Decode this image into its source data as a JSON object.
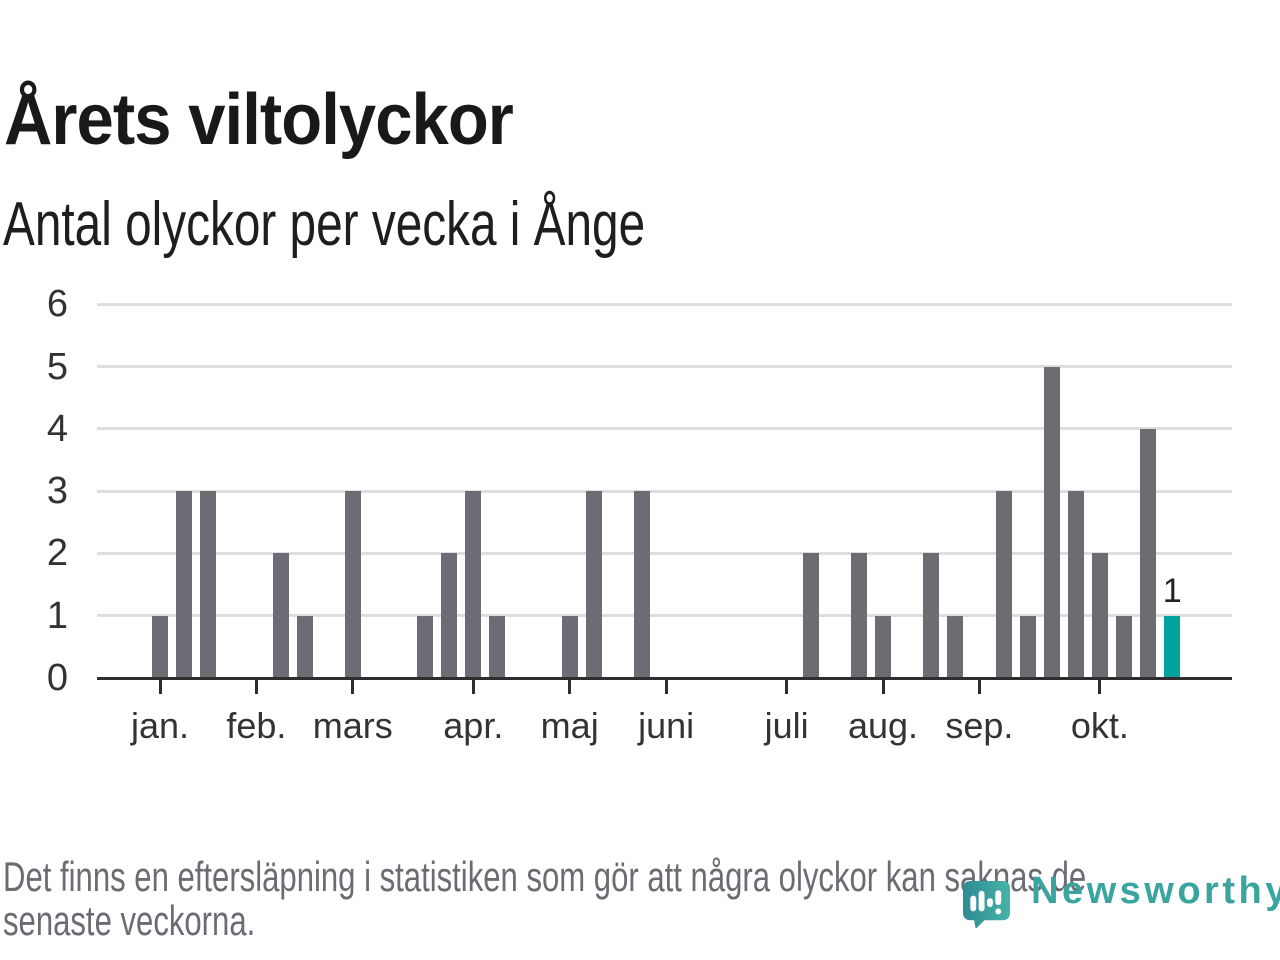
{
  "header": {
    "title": "Årets viltolyckor",
    "subtitle": "Antal olyckor per vecka i Ånge"
  },
  "chart_data": {
    "type": "bar",
    "title": "Årets viltolyckor",
    "subtitle": "Antal olyckor per vecka i Ånge",
    "x_unit": "vecka",
    "ylim": [
      0,
      6
    ],
    "yticks": [
      0,
      1,
      2,
      3,
      4,
      5,
      6
    ],
    "grid": "horizontal",
    "weekly_values": [
      1,
      3,
      3,
      0,
      0,
      2,
      1,
      0,
      3,
      0,
      0,
      1,
      2,
      3,
      1,
      0,
      0,
      1,
      3,
      0,
      3,
      0,
      0,
      0,
      0,
      0,
      0,
      2,
      0,
      2,
      1,
      0,
      2,
      1,
      0,
      3,
      1,
      5,
      3,
      2,
      1,
      4,
      1
    ],
    "month_ticks": [
      {
        "label": "jan.",
        "week": 0
      },
      {
        "label": "feb.",
        "week": 4
      },
      {
        "label": "mars",
        "week": 8
      },
      {
        "label": "apr.",
        "week": 13
      },
      {
        "label": "maj",
        "week": 17
      },
      {
        "label": "juni",
        "week": 21
      },
      {
        "label": "juli",
        "week": 26
      },
      {
        "label": "aug.",
        "week": 30
      },
      {
        "label": "sep.",
        "week": 34
      },
      {
        "label": "okt.",
        "week": 39
      }
    ],
    "highlighted_week": 42,
    "highlighted_value_label": "1",
    "legend": null
  },
  "footer": {
    "line1": "Det finns en eftersläpning i statistiken som gör att några olyckor kan saknas de",
    "line2": "senaste veckorna."
  },
  "logo": {
    "wordmark": "Newsworthy"
  },
  "theme": {
    "bar_color": "#6c6c74",
    "highlight_color": "#00a29b",
    "grid_color": "#dedede",
    "axis_color": "#2e2e2e",
    "tick_label_color": "#333333",
    "title_color": "#191919",
    "subtitle_color": "#1e1e1e",
    "value_label_color": "#222222",
    "footnote_color": "#6b6b74",
    "logo_color": "#3aa59e",
    "logo_gradient": [
      "#2e8b94",
      "#47b3a7"
    ]
  }
}
